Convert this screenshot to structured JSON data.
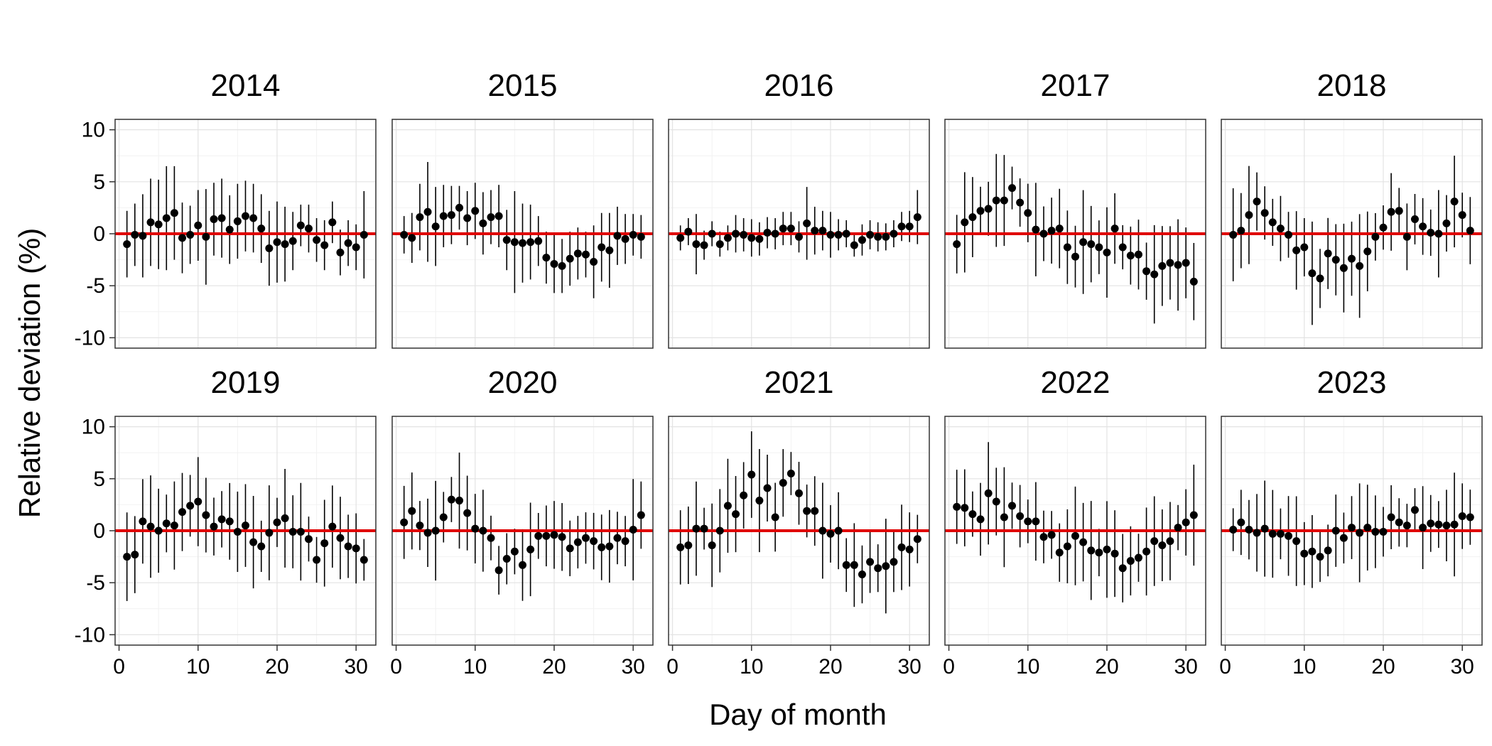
{
  "chart_data": {
    "type": "scatter",
    "xlabel": "Day of month",
    "ylabel": "Relative deviation (%)",
    "xlim": [
      -0.5,
      32.5
    ],
    "ylim": [
      -11,
      11
    ],
    "xticks": [
      0,
      10,
      20,
      30
    ],
    "yticks": [
      10,
      5,
      0,
      -5,
      -10
    ],
    "grid": true,
    "reference_line": {
      "y": 0,
      "color": "#e00000"
    },
    "point_color": "#000000",
    "days": [
      1,
      2,
      3,
      4,
      5,
      6,
      7,
      8,
      9,
      10,
      11,
      12,
      13,
      14,
      15,
      16,
      17,
      18,
      19,
      20,
      21,
      22,
      23,
      24,
      25,
      26,
      27,
      28,
      29,
      30,
      31
    ],
    "panels": [
      {
        "title": "2014",
        "y": [
          -1.0,
          -0.1,
          -0.2,
          1.1,
          0.9,
          1.5,
          2.0,
          -0.4,
          -0.1,
          0.8,
          -0.3,
          1.4,
          1.5,
          0.4,
          1.2,
          1.7,
          1.5,
          0.5,
          -1.4,
          -0.8,
          -1.0,
          -0.7,
          0.8,
          0.5,
          -0.6,
          -1.1,
          1.1,
          -1.8,
          -0.9,
          -1.3,
          -0.1
        ],
        "err": [
          3.2,
          3.0,
          4.0,
          4.2,
          4.3,
          5.0,
          4.5,
          3.4,
          2.8,
          3.4,
          4.6,
          3.5,
          3.8,
          3.3,
          3.6,
          3.4,
          3.3,
          3.3,
          3.6,
          3.9,
          3.6,
          2.8,
          2.0,
          2.3,
          2.1,
          2.4,
          2.0,
          2.2,
          2.2,
          2.2,
          4.2
        ]
      },
      {
        "title": "2015",
        "y": [
          -0.1,
          -0.4,
          1.6,
          2.1,
          0.7,
          1.7,
          1.8,
          2.5,
          1.5,
          2.2,
          1.0,
          1.6,
          1.7,
          -0.6,
          -0.8,
          -0.9,
          -0.8,
          -0.7,
          -2.3,
          -2.9,
          -3.1,
          -2.4,
          -1.9,
          -2.0,
          -2.7,
          -1.3,
          -1.6,
          -0.2,
          -0.5,
          -0.1,
          -0.3
        ],
        "err": [
          1.8,
          2.4,
          3.2,
          4.8,
          3.8,
          3.0,
          2.8,
          2.1,
          2.6,
          2.7,
          3.0,
          2.6,
          3.0,
          2.9,
          4.9,
          3.8,
          3.6,
          2.4,
          2.5,
          2.8,
          2.6,
          2.6,
          2.5,
          2.2,
          3.5,
          3.3,
          3.6,
          2.8,
          2.4,
          2.0,
          2.1
        ]
      },
      {
        "title": "2016",
        "y": [
          -0.4,
          0.2,
          -1.0,
          -1.1,
          0.0,
          -1.0,
          -0.4,
          0.0,
          -0.1,
          -0.4,
          -0.5,
          0.1,
          0.0,
          0.5,
          0.5,
          -0.3,
          1.0,
          0.3,
          0.3,
          -0.1,
          -0.1,
          0.0,
          -1.1,
          -0.6,
          -0.1,
          -0.3,
          -0.3,
          0.0,
          0.7,
          0.7,
          1.6
        ],
        "err": [
          1.2,
          1.3,
          2.9,
          1.4,
          1.2,
          1.2,
          1.2,
          1.8,
          1.6,
          1.8,
          1.6,
          1.5,
          1.5,
          1.6,
          1.6,
          1.5,
          3.5,
          2.3,
          1.9,
          2.2,
          1.5,
          1.3,
          1.1,
          1.5,
          1.4,
          1.4,
          1.3,
          1.3,
          1.4,
          1.5,
          2.6
        ]
      },
      {
        "title": "2017",
        "y": [
          -1.0,
          1.1,
          1.6,
          2.2,
          2.4,
          3.2,
          3.2,
          4.4,
          3.0,
          2.0,
          0.4,
          0.0,
          0.3,
          0.5,
          -1.3,
          -2.2,
          -0.8,
          -1.0,
          -1.3,
          -1.8,
          0.5,
          -1.3,
          -2.1,
          -2.0,
          -3.6,
          -3.9,
          -3.1,
          -2.8,
          -3.0,
          -2.8,
          -4.6
        ]
      },
      {
        "title": "2018",
        "y": [
          -0.1,
          0.3,
          1.8,
          3.1,
          2.0,
          1.1,
          0.5,
          -0.1,
          -1.6,
          -1.3,
          -3.8,
          -4.3,
          -1.9,
          -2.5,
          -3.3,
          -2.4,
          -3.1,
          -1.7,
          -0.3,
          0.6,
          2.1,
          2.2,
          -0.3,
          1.4,
          0.7,
          0.1,
          0.0,
          1.0,
          3.1,
          1.8,
          0.3
        ]
      },
      {
        "title": "2019",
        "y": [
          -2.5,
          -2.3,
          0.9,
          0.4,
          0.0,
          0.7,
          0.5,
          1.8,
          2.4,
          2.8,
          1.5,
          0.4,
          1.1,
          0.9,
          -0.1,
          0.5,
          -1.1,
          -1.5,
          -0.2,
          0.8,
          1.2,
          -0.1,
          -0.1,
          -0.8,
          -2.8,
          -1.2,
          0.4,
          -0.7,
          -1.5,
          -1.7,
          -2.8
        ]
      },
      {
        "title": "2020",
        "y": [
          0.8,
          1.9,
          0.5,
          -0.2,
          0.0,
          1.3,
          3.0,
          2.9,
          1.7,
          0.2,
          0.0,
          -0.7,
          -3.8,
          -2.7,
          -2.0,
          -3.3,
          -1.8,
          -0.5,
          -0.5,
          -0.4,
          -0.6,
          -1.7,
          -1.1,
          -0.7,
          -1.0,
          -1.6,
          -1.5,
          -0.7,
          -1.0,
          0.1,
          1.5
        ]
      },
      {
        "title": "2021",
        "y": [
          -1.6,
          -1.4,
          0.2,
          0.2,
          -1.4,
          0.0,
          2.4,
          1.6,
          3.4,
          5.4,
          2.9,
          4.1,
          1.3,
          4.6,
          5.5,
          3.6,
          1.9,
          1.9,
          0.0,
          -0.3,
          0.0,
          -3.3,
          -3.3,
          -4.2,
          -3.0,
          -3.6,
          -3.4,
          -3.0,
          -1.6,
          -1.8,
          -0.8
        ]
      },
      {
        "title": "2022",
        "y": [
          2.3,
          2.2,
          1.6,
          1.1,
          3.6,
          2.8,
          1.3,
          2.4,
          1.4,
          0.9,
          0.9,
          -0.6,
          -0.4,
          -2.1,
          -1.5,
          -0.5,
          -1.1,
          -1.9,
          -2.1,
          -1.8,
          -2.2,
          -3.6,
          -2.9,
          -2.6,
          -2.0,
          -1.0,
          -1.4,
          -1.0,
          0.3,
          0.8,
          1.5
        ]
      },
      {
        "title": "2023",
        "y": [
          0.1,
          0.8,
          0.1,
          -0.2,
          0.2,
          -0.3,
          -0.3,
          -0.5,
          -1.0,
          -2.2,
          -2.0,
          -2.5,
          -1.9,
          0.0,
          -0.7,
          0.3,
          -0.2,
          0.3,
          -0.1,
          -0.1,
          1.3,
          0.8,
          0.5,
          2.0,
          0.3,
          0.7,
          0.6,
          0.5,
          0.6,
          1.4,
          1.3
        ]
      }
    ]
  }
}
